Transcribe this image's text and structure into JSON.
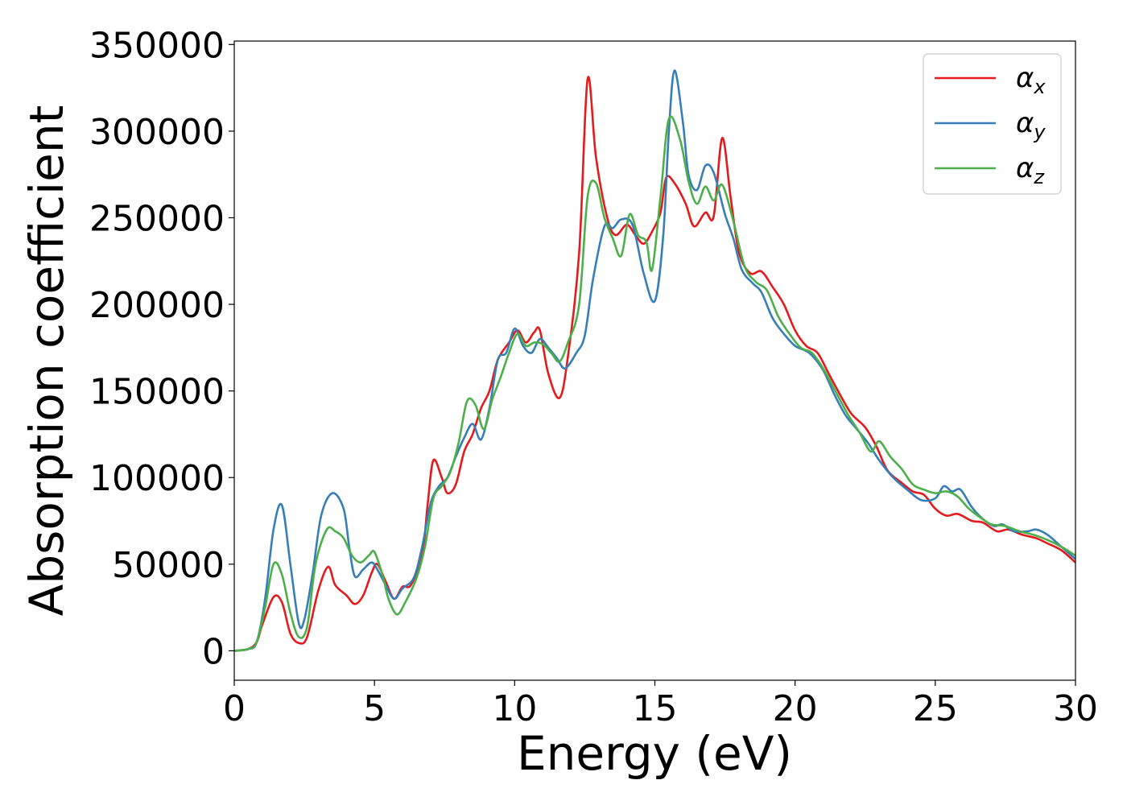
{
  "chart_data": {
    "type": "line",
    "title": "",
    "xlabel": "Energy (eV)",
    "ylabel": "Absorption coefficient",
    "xlim": [
      0,
      30
    ],
    "ylim": [
      -17000,
      352000
    ],
    "xticks": [
      0,
      5,
      10,
      15,
      20,
      25,
      30
    ],
    "xtick_labels": [
      "0",
      "5",
      "10",
      "15",
      "20",
      "25",
      "30"
    ],
    "yticks": [
      0,
      50000,
      100000,
      150000,
      200000,
      250000,
      300000,
      350000
    ],
    "ytick_labels": [
      "0",
      "50000",
      "100000",
      "150000",
      "200000",
      "250000",
      "300000",
      "350000"
    ],
    "grid": false,
    "legend_position": "top-right",
    "series": [
      {
        "name": "αx",
        "symbol": "α",
        "subscript": "x",
        "color": "#e41a1c",
        "points": [
          [
            0,
            0
          ],
          [
            0.5,
            1000
          ],
          [
            0.8,
            5000
          ],
          [
            1,
            15000
          ],
          [
            1.4,
            31000
          ],
          [
            1.7,
            28000
          ],
          [
            2,
            10000
          ],
          [
            2.3,
            4500
          ],
          [
            2.6,
            8000
          ],
          [
            3,
            35000
          ],
          [
            3.35,
            48500
          ],
          [
            3.6,
            38000
          ],
          [
            4,
            32000
          ],
          [
            4.3,
            27000
          ],
          [
            4.6,
            32000
          ],
          [
            4.9,
            45000
          ],
          [
            5.1,
            50000
          ],
          [
            5.4,
            40000
          ],
          [
            5.7,
            30000
          ],
          [
            6,
            37000
          ],
          [
            6.3,
            38000
          ],
          [
            6.7,
            55000
          ],
          [
            6.9,
            85000
          ],
          [
            7.1,
            110000
          ],
          [
            7.4,
            100000
          ],
          [
            7.6,
            91000
          ],
          [
            7.9,
            96000
          ],
          [
            8.2,
            115000
          ],
          [
            8.5,
            125000
          ],
          [
            8.8,
            140000
          ],
          [
            9.1,
            150000
          ],
          [
            9.4,
            168000
          ],
          [
            9.8,
            178000
          ],
          [
            10.1,
            185000
          ],
          [
            10.4,
            178000
          ],
          [
            10.7,
            184000
          ],
          [
            10.9,
            185000
          ],
          [
            11.2,
            160000
          ],
          [
            11.6,
            146000
          ],
          [
            11.9,
            170000
          ],
          [
            12.3,
            230000
          ],
          [
            12.6,
            330000
          ],
          [
            12.9,
            285000
          ],
          [
            13.3,
            250000
          ],
          [
            13.6,
            240000
          ],
          [
            14,
            246000
          ],
          [
            14.3,
            240000
          ],
          [
            14.6,
            235000
          ],
          [
            14.9,
            242000
          ],
          [
            15.2,
            253000
          ],
          [
            15.4,
            273000
          ],
          [
            15.7,
            270000
          ],
          [
            16.1,
            258000
          ],
          [
            16.4,
            245000
          ],
          [
            16.8,
            253000
          ],
          [
            17.1,
            251000
          ],
          [
            17.4,
            296000
          ],
          [
            17.7,
            262000
          ],
          [
            18,
            230000
          ],
          [
            18.4,
            218000
          ],
          [
            18.8,
            219000
          ],
          [
            19.2,
            210000
          ],
          [
            19.6,
            200000
          ],
          [
            20,
            185000
          ],
          [
            20.4,
            176000
          ],
          [
            20.8,
            172000
          ],
          [
            21.2,
            160000
          ],
          [
            21.6,
            148000
          ],
          [
            22,
            137000
          ],
          [
            22.5,
            129000
          ],
          [
            22.9,
            118000
          ],
          [
            23.3,
            104000
          ],
          [
            23.8,
            97000
          ],
          [
            24.2,
            92000
          ],
          [
            24.6,
            90000
          ],
          [
            25,
            82000
          ],
          [
            25.4,
            78000
          ],
          [
            25.8,
            79000
          ],
          [
            26.3,
            75000
          ],
          [
            26.7,
            74000
          ],
          [
            27.2,
            69000
          ],
          [
            27.6,
            70000
          ],
          [
            28.1,
            67000
          ],
          [
            28.6,
            65000
          ],
          [
            29,
            62000
          ],
          [
            29.5,
            58000
          ],
          [
            30,
            51000
          ]
        ]
      },
      {
        "name": "αy",
        "symbol": "α",
        "subscript": "y",
        "color": "#377eb8",
        "points": [
          [
            0,
            0
          ],
          [
            0.5,
            1000
          ],
          [
            0.8,
            5000
          ],
          [
            1.1,
            30000
          ],
          [
            1.4,
            70000
          ],
          [
            1.7,
            84000
          ],
          [
            2,
            50000
          ],
          [
            2.3,
            16000
          ],
          [
            2.5,
            18000
          ],
          [
            2.8,
            45000
          ],
          [
            3.1,
            78000
          ],
          [
            3.5,
            91000
          ],
          [
            3.9,
            82000
          ],
          [
            4.1,
            60000
          ],
          [
            4.3,
            43000
          ],
          [
            4.6,
            47000
          ],
          [
            4.9,
            51000
          ],
          [
            5.1,
            47000
          ],
          [
            5.4,
            38000
          ],
          [
            5.7,
            30000
          ],
          [
            6,
            36000
          ],
          [
            6.4,
            42000
          ],
          [
            6.7,
            60000
          ],
          [
            7,
            85000
          ],
          [
            7.3,
            95000
          ],
          [
            7.6,
            100000
          ],
          [
            7.9,
            112000
          ],
          [
            8.2,
            123000
          ],
          [
            8.5,
            131000
          ],
          [
            8.8,
            122000
          ],
          [
            9.1,
            140000
          ],
          [
            9.4,
            168000
          ],
          [
            9.7,
            172000
          ],
          [
            10,
            186000
          ],
          [
            10.3,
            176000
          ],
          [
            10.6,
            172000
          ],
          [
            10.9,
            180000
          ],
          [
            11.2,
            175000
          ],
          [
            11.5,
            169000
          ],
          [
            11.8,
            163000
          ],
          [
            12.2,
            172000
          ],
          [
            12.5,
            182000
          ],
          [
            12.8,
            215000
          ],
          [
            13.2,
            245000
          ],
          [
            13.5,
            244000
          ],
          [
            13.8,
            249000
          ],
          [
            14.2,
            246000
          ],
          [
            14.6,
            218000
          ],
          [
            15,
            202000
          ],
          [
            15.3,
            240000
          ],
          [
            15.5,
            300000
          ],
          [
            15.7,
            335000
          ],
          [
            16,
            305000
          ],
          [
            16.2,
            275000
          ],
          [
            16.5,
            266000
          ],
          [
            16.8,
            280000
          ],
          [
            17.1,
            276000
          ],
          [
            17.5,
            252000
          ],
          [
            17.8,
            238000
          ],
          [
            18.1,
            220000
          ],
          [
            18.5,
            212000
          ],
          [
            18.8,
            207000
          ],
          [
            19.2,
            192000
          ],
          [
            19.6,
            183000
          ],
          [
            20,
            176000
          ],
          [
            20.5,
            172000
          ],
          [
            21,
            162000
          ],
          [
            21.4,
            148000
          ],
          [
            21.8,
            136000
          ],
          [
            22.2,
            128000
          ],
          [
            22.6,
            120000
          ],
          [
            23,
            110000
          ],
          [
            23.5,
            100000
          ],
          [
            24,
            93000
          ],
          [
            24.5,
            87000
          ],
          [
            25,
            88000
          ],
          [
            25.3,
            95000
          ],
          [
            25.6,
            92000
          ],
          [
            25.9,
            93000
          ],
          [
            26.3,
            83000
          ],
          [
            26.7,
            76000
          ],
          [
            27.1,
            72000
          ],
          [
            27.4,
            73000
          ],
          [
            27.8,
            69000
          ],
          [
            28.3,
            69000
          ],
          [
            28.6,
            70000
          ],
          [
            29,
            67000
          ],
          [
            29.5,
            60000
          ],
          [
            30,
            53000
          ]
        ]
      },
      {
        "name": "αz",
        "symbol": "α",
        "subscript": "z",
        "color": "#4daf4a",
        "points": [
          [
            0,
            0
          ],
          [
            0.5,
            1000
          ],
          [
            0.8,
            5000
          ],
          [
            1.1,
            25000
          ],
          [
            1.4,
            50000
          ],
          [
            1.7,
            44000
          ],
          [
            2,
            22000
          ],
          [
            2.3,
            8000
          ],
          [
            2.6,
            14000
          ],
          [
            2.9,
            50000
          ],
          [
            3.3,
            70000
          ],
          [
            3.6,
            69000
          ],
          [
            3.9,
            65000
          ],
          [
            4.2,
            55000
          ],
          [
            4.5,
            51000
          ],
          [
            4.8,
            55000
          ],
          [
            5,
            57000
          ],
          [
            5.3,
            43000
          ],
          [
            5.5,
            30000
          ],
          [
            5.8,
            21000
          ],
          [
            6.1,
            28000
          ],
          [
            6.5,
            42000
          ],
          [
            6.8,
            60000
          ],
          [
            7.1,
            88000
          ],
          [
            7.4,
            95000
          ],
          [
            7.7,
            103000
          ],
          [
            8,
            120000
          ],
          [
            8.3,
            144000
          ],
          [
            8.6,
            142000
          ],
          [
            8.9,
            128000
          ],
          [
            9.2,
            145000
          ],
          [
            9.5,
            158000
          ],
          [
            9.8,
            172000
          ],
          [
            10.1,
            183000
          ],
          [
            10.4,
            176000
          ],
          [
            10.7,
            178000
          ],
          [
            11,
            177000
          ],
          [
            11.3,
            172000
          ],
          [
            11.6,
            167000
          ],
          [
            11.9,
            178000
          ],
          [
            12.3,
            200000
          ],
          [
            12.6,
            262000
          ],
          [
            12.9,
            270000
          ],
          [
            13.2,
            250000
          ],
          [
            13.5,
            238000
          ],
          [
            13.8,
            228000
          ],
          [
            14.1,
            252000
          ],
          [
            14.4,
            240000
          ],
          [
            14.7,
            236000
          ],
          [
            14.9,
            220000
          ],
          [
            15.2,
            262000
          ],
          [
            15.5,
            307000
          ],
          [
            15.9,
            295000
          ],
          [
            16.2,
            271000
          ],
          [
            16.5,
            258000
          ],
          [
            16.8,
            268000
          ],
          [
            17.1,
            260000
          ],
          [
            17.4,
            269000
          ],
          [
            17.8,
            248000
          ],
          [
            18.2,
            222000
          ],
          [
            18.6,
            213000
          ],
          [
            19,
            208000
          ],
          [
            19.4,
            193000
          ],
          [
            19.8,
            183000
          ],
          [
            20.2,
            175000
          ],
          [
            20.6,
            172000
          ],
          [
            21,
            163000
          ],
          [
            21.5,
            148000
          ],
          [
            21.9,
            136000
          ],
          [
            22.3,
            126000
          ],
          [
            22.7,
            115000
          ],
          [
            23,
            121000
          ],
          [
            23.4,
            112000
          ],
          [
            23.8,
            105000
          ],
          [
            24.2,
            96000
          ],
          [
            24.6,
            93000
          ],
          [
            25,
            91000
          ],
          [
            25.4,
            92000
          ],
          [
            25.8,
            89000
          ],
          [
            26.2,
            82000
          ],
          [
            26.6,
            77000
          ],
          [
            27,
            73000
          ],
          [
            27.5,
            72000
          ],
          [
            28,
            69000
          ],
          [
            28.5,
            67000
          ],
          [
            29,
            64000
          ],
          [
            29.5,
            60000
          ],
          [
            30,
            55000
          ]
        ]
      }
    ]
  }
}
